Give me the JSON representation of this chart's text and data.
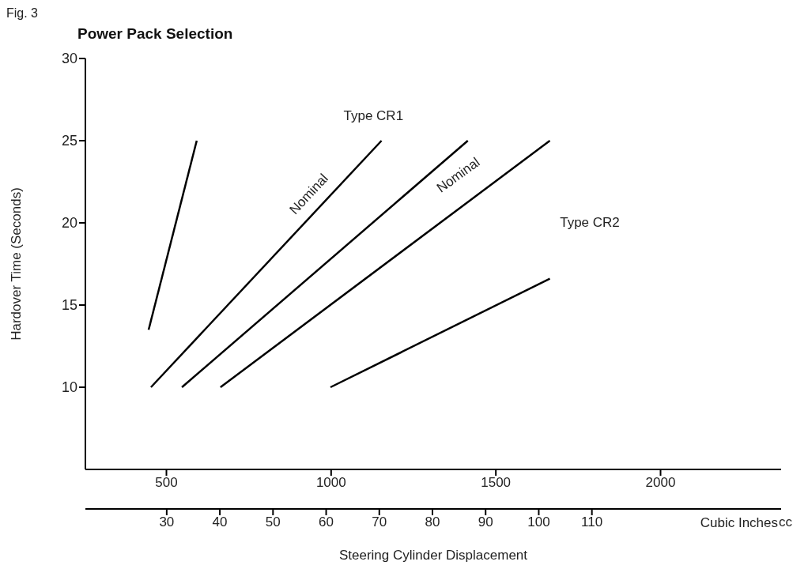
{
  "chart_data": {
    "type": "line",
    "title": "Power Pack Selection",
    "xlabel": "Steering Cylinder Displacement",
    "ylabel": "Hardover Time (Seconds)",
    "x2label": "Cubic Inches",
    "xlim": [
      254,
      2366
    ],
    "xticks": [
      500,
      1000,
      1500,
      2000
    ],
    "x2lim": [
      14.7,
      145.6
    ],
    "x2ticks": [
      30,
      40,
      50,
      60,
      70,
      80,
      90,
      100,
      110
    ],
    "ylim": [
      5,
      30
    ],
    "yticks": [
      10,
      15,
      20,
      25,
      30
    ],
    "grid": false,
    "legend": false,
    "marker": "none",
    "line_style": "solid",
    "series": [
      {
        "color": "#000000",
        "x": [
          446,
          592
        ],
        "values": [
          13.5,
          25
        ]
      },
      {
        "color": "#000000",
        "x": [
          453,
          1153
        ],
        "values": [
          10,
          25
        ]
      },
      {
        "color": "#000000",
        "x": [
          547,
          1415
        ],
        "values": [
          10,
          25
        ]
      },
      {
        "color": "#000000",
        "x": [
          664,
          1664
        ],
        "values": [
          10,
          25
        ]
      },
      {
        "color": "#000000",
        "x": [
          998,
          1664
        ],
        "values": [
          10,
          16.6
        ]
      }
    ],
    "annotations": [
      "Fig. 3",
      "cc",
      "Type CR1",
      "Nominal",
      "Nominal",
      "Type CR2"
    ]
  }
}
